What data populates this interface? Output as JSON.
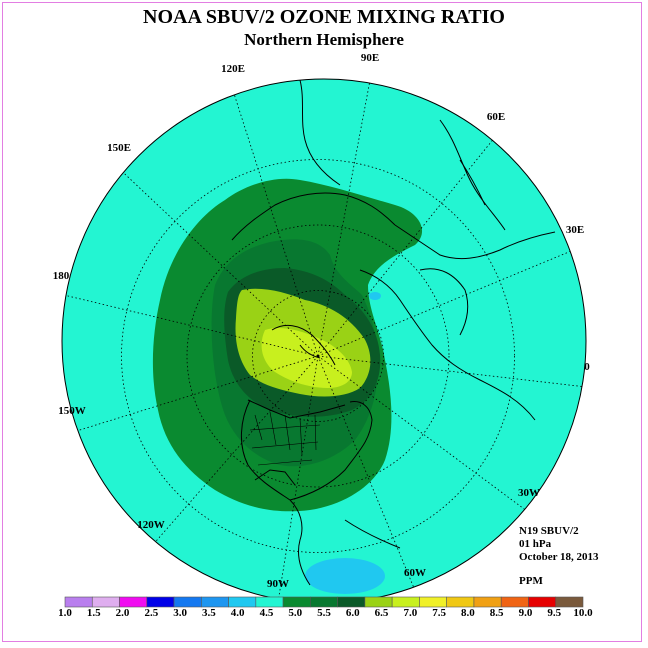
{
  "title": "NOAA SBUV/2 OZONE MIXING RATIO",
  "subtitle": "Northern Hemisphere",
  "info": {
    "instrument": "N19 SBUV/2",
    "level": "01 hPa",
    "date": "October 18, 2013",
    "units": "PPM"
  },
  "longitude_labels": [
    "90E",
    "60E",
    "30E",
    "0",
    "30W",
    "60W",
    "90W",
    "120W",
    "150W",
    "180",
    "150E",
    "120E"
  ],
  "colorbar": {
    "labels": [
      "1.0",
      "1.5",
      "2.0",
      "2.5",
      "3.0",
      "3.5",
      "4.0",
      "4.5",
      "5.0",
      "5.5",
      "6.0",
      "6.5",
      "7.0",
      "7.5",
      "8.0",
      "8.5",
      "9.0",
      "9.5",
      "10.0"
    ],
    "colors": [
      "#b97fee",
      "#dfaeef",
      "#f00cf0",
      "#0000e8",
      "#1478f0",
      "#1e96f0",
      "#20c8f0",
      "#23f5d2",
      "#0a8a30",
      "#087830",
      "#0a5a28",
      "#9ad215",
      "#c8f01e",
      "#f0f028",
      "#f0c814",
      "#f0a014",
      "#f06414",
      "#e60000",
      "#7a5a3c"
    ]
  },
  "map_colors": {
    "ocean_fill": "#23f5d2",
    "level_5_0": "#0a8a30",
    "level_5_5": "#087830",
    "level_6_0": "#0a5a28",
    "level_6_5": "#9ad215",
    "level_7_0": "#c8f01e",
    "low_blue": "#20c8f0"
  }
}
